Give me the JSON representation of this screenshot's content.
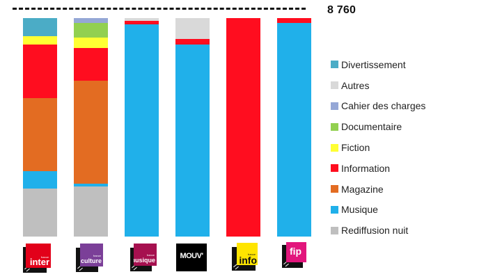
{
  "chart_data": {
    "type": "bar",
    "stacked": true,
    "title": "",
    "xlabel": "",
    "ylabel": "",
    "reference_line": {
      "value": 8760,
      "label": "8 760",
      "style": "dashed"
    },
    "ylim": [
      0,
      8760
    ],
    "grid": false,
    "legend_position": "right",
    "categories": [
      "France Inter",
      "France Culture",
      "France Musique",
      "Mouv'",
      "France Info",
      "FIP"
    ],
    "stack_order_bottom_to_top": [
      "Rediffusion nuit",
      "Musique",
      "Magazine",
      "Information",
      "Fiction",
      "Documentaire",
      "Cahier des charges",
      "Autres",
      "Divertissement"
    ],
    "series": [
      {
        "name": "Rediffusion nuit",
        "color": "#BFBFBF",
        "values": [
          1925,
          2010,
          0,
          0,
          0,
          0
        ]
      },
      {
        "name": "Musique",
        "color": "#20B0EA",
        "values": [
          695,
          110,
          8510,
          7700,
          0,
          8565
        ]
      },
      {
        "name": "Magazine",
        "color": "#E36C22",
        "values": [
          2930,
          4130,
          0,
          0,
          0,
          0
        ]
      },
      {
        "name": "Information",
        "color": "#FF0D1F",
        "values": [
          2150,
          1310,
          140,
          225,
          8760,
          195
        ]
      },
      {
        "name": "Fiction",
        "color": "#FFFF33",
        "values": [
          335,
          420,
          0,
          0,
          0,
          0
        ]
      },
      {
        "name": "Documentaire",
        "color": "#92D050",
        "values": [
          0,
          585,
          0,
          0,
          0,
          0
        ]
      },
      {
        "name": "Cahier des charges",
        "color": "#95A7D6",
        "values": [
          0,
          195,
          0,
          0,
          0,
          0
        ]
      },
      {
        "name": "Autres",
        "color": "#D9D9D9",
        "values": [
          0,
          0,
          110,
          835,
          0,
          0
        ]
      },
      {
        "name": "Divertissement",
        "color": "#4BACC6",
        "values": [
          725,
          0,
          0,
          0,
          0,
          0
        ]
      }
    ]
  },
  "total_label": "8 760",
  "legend": [
    {
      "label": "Divertissement",
      "color": "#4BACC6"
    },
    {
      "label": "Autres",
      "color": "#D9D9D9"
    },
    {
      "label": "Cahier des charges",
      "color": "#95A7D6"
    },
    {
      "label": "Documentaire",
      "color": "#92D050"
    },
    {
      "label": "Fiction",
      "color": "#FFFF33"
    },
    {
      "label": "Information",
      "color": "#FF0D1F"
    },
    {
      "label": "Magazine",
      "color": "#E36C22"
    },
    {
      "label": "Musique",
      "color": "#20B0EA"
    },
    {
      "label": "Rediffusion nuit",
      "color": "#BFBFBF"
    }
  ],
  "logos": [
    {
      "name": "France Inter",
      "small": "france",
      "big": "inter",
      "color": "#E2001A",
      "text_color": "#ffffff"
    },
    {
      "name": "France Culture",
      "small": "france",
      "big": "culture",
      "color": "#7B3F98",
      "text_color": "#ffffff"
    },
    {
      "name": "France Musique",
      "small": "france",
      "big": "musique",
      "color": "#A6104F",
      "text_color": "#ffffff"
    },
    {
      "name": "Mouv'",
      "small": "",
      "big": "MOUV'",
      "color": "#000000",
      "text_color": "#ffffff"
    },
    {
      "name": "France Info",
      "small": "france",
      "big": "info",
      "color": "#FFE500",
      "text_color": "#111111"
    },
    {
      "name": "FIP",
      "small": "",
      "big": "fip",
      "color": "#E2167C",
      "text_color": "#ffffff"
    }
  ]
}
